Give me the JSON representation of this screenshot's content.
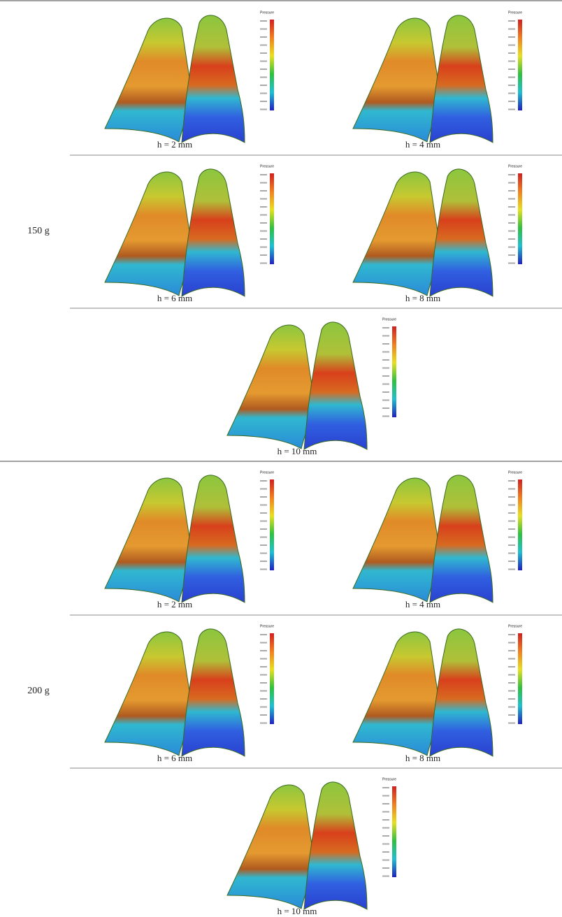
{
  "groups": [
    {
      "label": "150 g",
      "rows": [
        [
          {
            "caption": "h = 2 mm",
            "legend_title": "Pressure"
          },
          {
            "caption": "h = 4 mm",
            "legend_title": "Pressure"
          }
        ],
        [
          {
            "caption": "h = 6 mm",
            "legend_title": "Pressure"
          },
          {
            "caption": "h = 8 mm",
            "legend_title": "Pressure"
          }
        ],
        [
          {
            "caption": "h = 10 mm",
            "legend_title": "Pressure"
          }
        ]
      ]
    },
    {
      "label": "200 g",
      "rows": [
        [
          {
            "caption": "h = 2 mm",
            "legend_title": "Pressure"
          },
          {
            "caption": "h = 4 mm",
            "legend_title": "Pressure"
          }
        ],
        [
          {
            "caption": "h = 6 mm",
            "legend_title": "Pressure"
          },
          {
            "caption": "h = 8 mm",
            "legend_title": "Pressure"
          }
        ],
        [
          {
            "caption": "h = 10 mm",
            "legend_title": "Pressure"
          }
        ]
      ]
    }
  ]
}
